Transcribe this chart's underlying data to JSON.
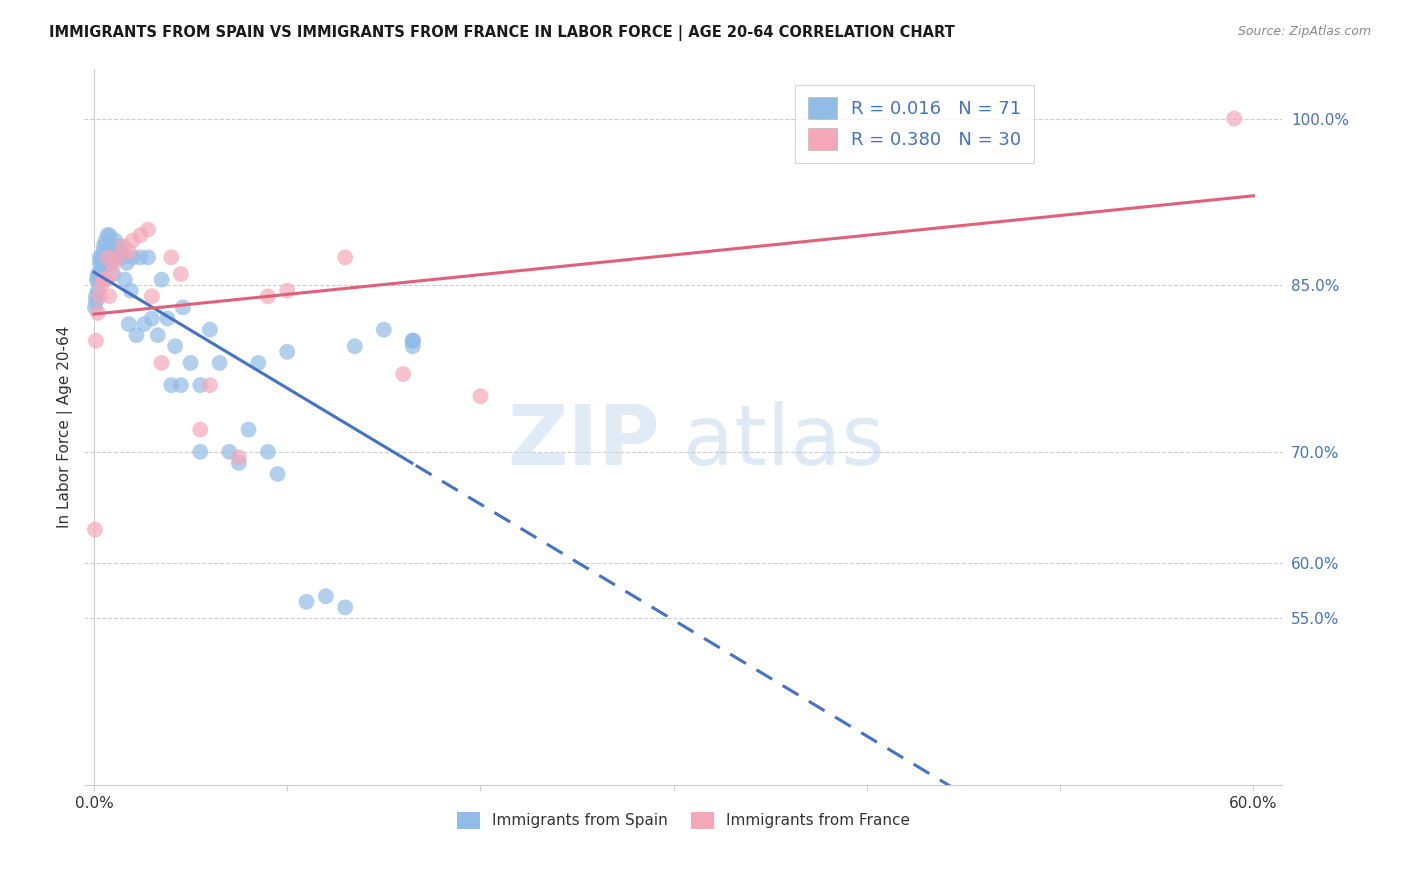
{
  "title": "IMMIGRANTS FROM SPAIN VS IMMIGRANTS FROM FRANCE IN LABOR FORCE | AGE 20-64 CORRELATION CHART",
  "source": "Source: ZipAtlas.com",
  "ylabel": "In Labor Force | Age 20-64",
  "r_spain": 0.016,
  "n_spain": 71,
  "r_france": 0.38,
  "n_france": 30,
  "color_spain": "#92bce8",
  "color_france": "#f4a7b8",
  "line_color_spain": "#4472c4",
  "line_color_france": "#e0607a",
  "watermark_zip": "ZIP",
  "watermark_atlas": "atlas",
  "spain_x": [
    0.0005,
    0.001,
    0.001,
    0.0015,
    0.002,
    0.002,
    0.002,
    0.003,
    0.003,
    0.003,
    0.004,
    0.004,
    0.004,
    0.005,
    0.005,
    0.005,
    0.005,
    0.006,
    0.006,
    0.006,
    0.007,
    0.007,
    0.008,
    0.008,
    0.009,
    0.009,
    0.01,
    0.01,
    0.011,
    0.012,
    0.013,
    0.014,
    0.015,
    0.016,
    0.017,
    0.018,
    0.019,
    0.02,
    0.022,
    0.024,
    0.026,
    0.028,
    0.03,
    0.033,
    0.035,
    0.038,
    0.042,
    0.046,
    0.05,
    0.055,
    0.06,
    0.065,
    0.07,
    0.08,
    0.09,
    0.1,
    0.11,
    0.12,
    0.135,
    0.15,
    0.165,
    0.165,
    0.165,
    0.165,
    0.04,
    0.075,
    0.085,
    0.095,
    0.045,
    0.055,
    0.13
  ],
  "spain_y": [
    0.83,
    0.84,
    0.835,
    0.855,
    0.86,
    0.845,
    0.855,
    0.87,
    0.86,
    0.875,
    0.865,
    0.875,
    0.86,
    0.88,
    0.87,
    0.885,
    0.865,
    0.875,
    0.89,
    0.87,
    0.88,
    0.895,
    0.875,
    0.895,
    0.87,
    0.885,
    0.88,
    0.86,
    0.89,
    0.875,
    0.885,
    0.88,
    0.875,
    0.855,
    0.87,
    0.815,
    0.845,
    0.875,
    0.805,
    0.875,
    0.815,
    0.875,
    0.82,
    0.805,
    0.855,
    0.82,
    0.795,
    0.83,
    0.78,
    0.76,
    0.81,
    0.78,
    0.7,
    0.72,
    0.7,
    0.79,
    0.565,
    0.57,
    0.795,
    0.81,
    0.795,
    0.8,
    0.8,
    0.8,
    0.76,
    0.69,
    0.78,
    0.68,
    0.76,
    0.7,
    0.56
  ],
  "france_x": [
    0.0005,
    0.001,
    0.002,
    0.003,
    0.004,
    0.005,
    0.006,
    0.007,
    0.008,
    0.009,
    0.01,
    0.012,
    0.015,
    0.018,
    0.02,
    0.024,
    0.028,
    0.03,
    0.035,
    0.04,
    0.045,
    0.055,
    0.06,
    0.075,
    0.09,
    0.1,
    0.13,
    0.16,
    0.2,
    0.59
  ],
  "france_y": [
    0.63,
    0.8,
    0.825,
    0.84,
    0.85,
    0.855,
    0.855,
    0.875,
    0.84,
    0.86,
    0.87,
    0.875,
    0.885,
    0.88,
    0.89,
    0.895,
    0.9,
    0.84,
    0.78,
    0.875,
    0.86,
    0.72,
    0.76,
    0.695,
    0.84,
    0.845,
    0.875,
    0.77,
    0.75,
    1.0
  ],
  "xlim_min": -0.005,
  "xlim_max": 0.615,
  "ylim_min": 0.4,
  "ylim_max": 1.045,
  "xtick_positions": [
    0.0,
    0.1,
    0.2,
    0.3,
    0.4,
    0.5,
    0.6
  ],
  "xtick_labels": [
    "0.0%",
    "",
    "",
    "",
    "",
    "",
    "60.0%"
  ],
  "ytick_positions": [
    0.55,
    0.6,
    0.7,
    0.85,
    1.0
  ],
  "ytick_labels": [
    "55.0%",
    "60.0%",
    "70.0%",
    "85.0%",
    "100.0%"
  ],
  "grid_color": "#cccccc",
  "spine_color": "#cccccc"
}
